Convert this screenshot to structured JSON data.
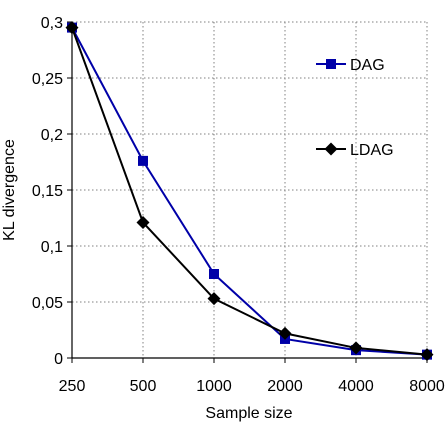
{
  "chart_data": {
    "type": "line",
    "xlabel": "Sample size",
    "ylabel": "KL divergence",
    "categories": [
      "250",
      "500",
      "1000",
      "2000",
      "4000",
      "8000"
    ],
    "ylim": [
      0,
      0.3
    ],
    "y_ticks": [
      "0",
      "0,05",
      "0,1",
      "0,15",
      "0,2",
      "0,25",
      "0,3"
    ],
    "y_tick_values": [
      0,
      0.05,
      0.1,
      0.15,
      0.2,
      0.25,
      0.3
    ],
    "grid": "dotted, both axes",
    "legend_placement": "right",
    "series": [
      {
        "name": "DAG",
        "marker": "square",
        "color": "#0000a8",
        "values": [
          0.295,
          0.176,
          0.075,
          0.017,
          0.007,
          0.003
        ]
      },
      {
        "name": "LDAG",
        "marker": "diamond",
        "color": "#000000",
        "values": [
          0.295,
          0.121,
          0.053,
          0.022,
          0.009,
          0.003
        ]
      }
    ]
  }
}
